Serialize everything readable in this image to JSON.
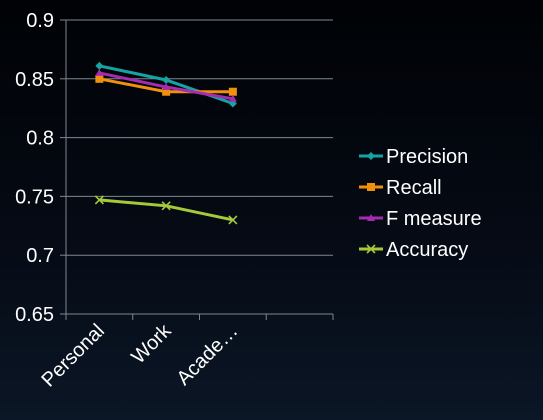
{
  "chart_data": {
    "type": "line",
    "categories": [
      "Personal",
      "Work",
      "Acade…"
    ],
    "series": [
      {
        "name": "Precision",
        "values": [
          0.861,
          0.849,
          0.829
        ],
        "color": "#16a3a3",
        "marker": "diamond"
      },
      {
        "name": "Recall",
        "values": [
          0.85,
          0.839,
          0.839
        ],
        "color": "#f0900c",
        "marker": "square"
      },
      {
        "name": "F measure",
        "values": [
          0.855,
          0.843,
          0.833
        ],
        "color": "#a52bb0",
        "marker": "triangle"
      },
      {
        "name": "Accuracy",
        "values": [
          0.747,
          0.742,
          0.73
        ],
        "color": "#a6c93c",
        "marker": "x"
      }
    ],
    "y_ticks": [
      "0.9",
      "0.85",
      "0.8",
      "0.75",
      "0.7",
      "0.65"
    ],
    "ylim": [
      0.65,
      0.9
    ],
    "grid": true,
    "legend": "right",
    "title": "",
    "xlabel": "",
    "ylabel": ""
  }
}
